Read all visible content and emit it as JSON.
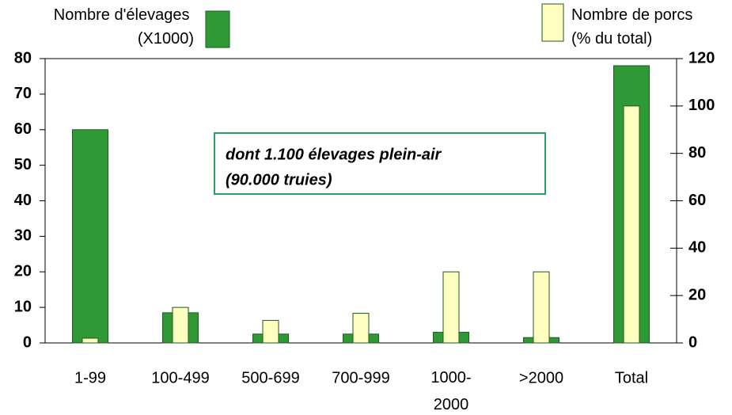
{
  "chart_data": {
    "type": "bar",
    "categories": [
      "1-99",
      "100-499",
      "500-699",
      "700-999",
      "1000-2000",
      ">2000",
      "Total"
    ],
    "series": [
      {
        "name": "Nombre d'élevages (X1000)",
        "color": "#2f9a35",
        "axis": "y",
        "values": [
          60,
          8.5,
          2.5,
          2.5,
          3,
          1.5,
          78
        ]
      },
      {
        "name": "Nombre de porcs (% du total)",
        "color": "#ffffc0",
        "axis": "y2",
        "values": [
          2,
          15,
          9.5,
          12.5,
          30,
          30,
          100
        ]
      }
    ],
    "ylim": [
      0,
      80
    ],
    "yticks": [
      0,
      10,
      20,
      30,
      40,
      50,
      60,
      70,
      80
    ],
    "y2lim": [
      0,
      120
    ],
    "y2ticks": [
      0,
      20,
      40,
      60,
      80,
      100,
      120
    ],
    "annotation": [
      "dont 1.100 élevages plein-air",
      "(90.000 truies)"
    ]
  }
}
